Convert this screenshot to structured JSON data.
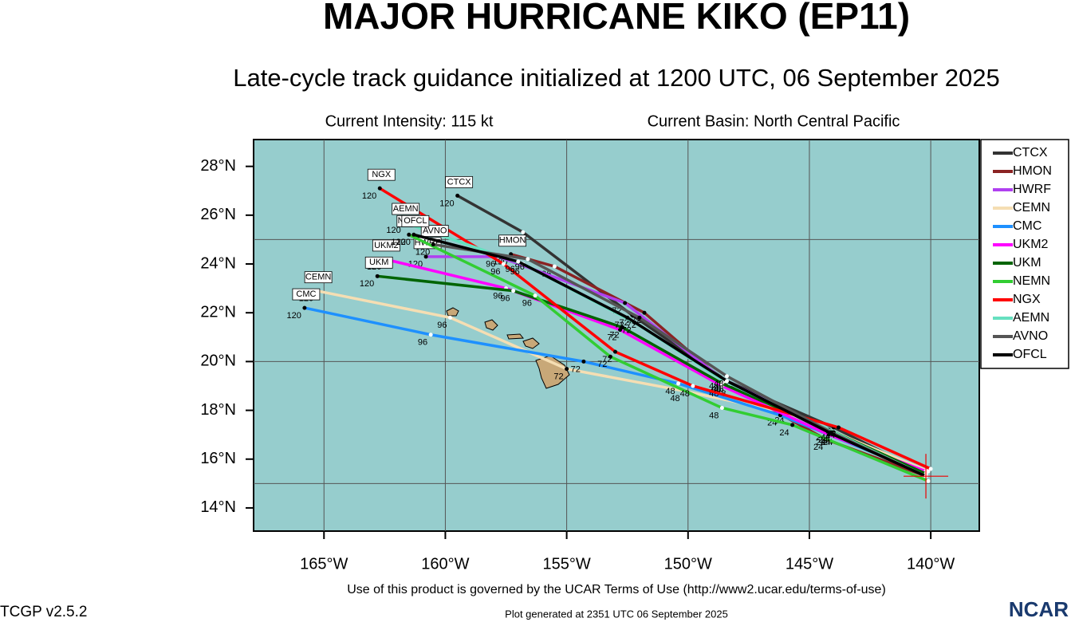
{
  "chart_data": {
    "type": "line",
    "title": "MAJOR HURRICANE KIKO (EP11)",
    "subtitle": "Late-cycle track guidance initialized at 1200 UTC, 06 September 2025",
    "intensity": "Current Intensity: 115 kt",
    "basin": "Current Basin: North Central Pacific",
    "terms": "Use of this product is governed by the UCAR Terms of Use (http://www2.ucar.edu/terms-of-use)",
    "version": "TCGP v2.5.2",
    "generated": "Plot generated at 2351 UTC   06 September 2025",
    "logo": "NCAR",
    "xlim": [
      -167.9,
      -138
    ],
    "ylim": [
      13.05,
      29.1
    ],
    "xticks": [
      {
        "value": -165,
        "label": "165°W"
      },
      {
        "value": -160,
        "label": "160°W"
      },
      {
        "value": -155,
        "label": "155°W"
      },
      {
        "value": -150,
        "label": "150°W"
      },
      {
        "value": -145,
        "label": "145°W"
      },
      {
        "value": -140,
        "label": "140°W"
      }
    ],
    "yticks": [
      {
        "value": 14,
        "label": "14°N"
      },
      {
        "value": 16,
        "label": "16°N"
      },
      {
        "value": 18,
        "label": "18°N"
      },
      {
        "value": 20,
        "label": "20°N"
      },
      {
        "value": 22,
        "label": "22°N"
      },
      {
        "value": 24,
        "label": "24°N"
      },
      {
        "value": 26,
        "label": "26°N"
      },
      {
        "value": 28,
        "label": "28°N"
      }
    ],
    "ygrid": [
      15,
      20,
      25
    ],
    "grid": true,
    "legend": "right",
    "current_position": {
      "x": -140.2,
      "y": 15.3
    },
    "series": [
      {
        "name": "CTCX",
        "color": "#333333",
        "x": [
          -140.2,
          -144,
          -148.4,
          -152.3,
          -156.8,
          -159.5
        ],
        "values": [
          15.4,
          17.3,
          19.2,
          21.9,
          25.3,
          26.8
        ],
        "value_labels": [
          null,
          "24",
          "48",
          "72",
          "96",
          "120"
        ]
      },
      {
        "name": "HMON",
        "color": "#8b2323",
        "x": [
          -140.2,
          -144.3,
          -148.3,
          -151.8,
          -155.5,
          -157.3
        ],
        "values": [
          15.3,
          16.8,
          19.0,
          22.0,
          23.9,
          24.4
        ],
        "value_labels": [
          null,
          "24",
          "48",
          "72",
          "96",
          "120"
        ]
      },
      {
        "name": "HWRF",
        "color": "#b040f0",
        "x": [
          -140.3,
          -143.9,
          -148.6,
          -152.6,
          -157.8,
          -160.8
        ],
        "values": [
          15.5,
          17.0,
          19.3,
          22.4,
          24.3,
          24.3
        ],
        "value_labels": [
          null,
          "24",
          "48",
          "72",
          "96",
          "120"
        ]
      },
      {
        "name": "CEMN",
        "color": "#f5deb3",
        "x": [
          -140.1,
          -145.9,
          -150.2,
          -155,
          -159.8,
          -165.3
        ],
        "values": [
          15.5,
          17.9,
          18.8,
          19.7,
          21.8,
          22.9
        ],
        "value_labels": [
          null,
          "24",
          "48",
          "72",
          "96",
          "120"
        ]
      },
      {
        "name": "CMC",
        "color": "#1e90ff",
        "x": [
          -140.2,
          -146.2,
          -150.4,
          -154.3,
          -160.6,
          -165.8
        ],
        "values": [
          15.4,
          17.8,
          19.1,
          20.0,
          21.1,
          22.2
        ],
        "value_labels": [
          null,
          "24",
          "48",
          "72",
          "96",
          "120"
        ]
      },
      {
        "name": "UKM2",
        "color": "#ff00ff",
        "x": [
          -140.2,
          -144.2,
          -148.6,
          -152.8,
          -157.5,
          -162.5
        ],
        "values": [
          15.5,
          17.0,
          19.0,
          21.3,
          23.0,
          24.2
        ],
        "value_labels": [
          null,
          "24",
          "48",
          "72",
          "96",
          "120"
        ]
      },
      {
        "name": "UKM",
        "color": "#006400",
        "x": [
          -140.2,
          -144.2,
          -148.6,
          -152.7,
          -157.2,
          -162.8
        ],
        "values": [
          15.4,
          17.2,
          19.1,
          21.4,
          22.9,
          23.5
        ],
        "value_labels": [
          null,
          "24",
          "48",
          "72",
          "96",
          "120"
        ]
      },
      {
        "name": "NEMN",
        "color": "#32cd32",
        "x": [
          -140.1,
          -145.7,
          -148.6,
          -153.2,
          -156.3,
          -161.5
        ],
        "values": [
          15.1,
          17.4,
          18.1,
          20.2,
          22.7,
          25.2
        ],
        "value_labels": [
          null,
          "24",
          "48",
          "72",
          "96",
          "120"
        ]
      },
      {
        "name": "NGX",
        "color": "#ff0000",
        "x": [
          -140.0,
          -143.8,
          -149.8,
          -153,
          -157.6,
          -162.7
        ],
        "values": [
          15.6,
          17.3,
          19.0,
          20.4,
          24.0,
          27.1
        ],
        "value_labels": [
          null,
          "24",
          "48",
          "72",
          "96",
          "120"
        ]
      },
      {
        "name": "AEMN",
        "color": "#66e0c0",
        "x": [
          -140.2,
          -144.0,
          -148.5,
          -152.2,
          -156.8,
          -161.7
        ],
        "values": [
          15.3,
          17.1,
          19.2,
          21.6,
          24.0,
          25.7
        ],
        "value_labels": [
          null,
          "24",
          "48",
          "72",
          "96",
          "120"
        ]
      },
      {
        "name": "AVNO",
        "color": "#555555",
        "x": [
          -140.2,
          -144.1,
          -148.4,
          -152.0,
          -156.6,
          -160.5
        ],
        "values": [
          15.3,
          17.1,
          19.4,
          21.8,
          24.2,
          24.8
        ],
        "value_labels": [
          null,
          "24",
          "48",
          "72",
          "96",
          "120"
        ]
      },
      {
        "name": "OFCL",
        "color": "#000000",
        "x": [
          -140.2,
          -144.0,
          -148.4,
          -152.5,
          -157.0,
          -161.3
        ],
        "values": [
          15.3,
          17.0,
          19.2,
          21.8,
          24.1,
          25.2
        ],
        "value_labels": [
          null,
          "24",
          "48",
          "72",
          "96",
          "120"
        ]
      }
    ]
  }
}
